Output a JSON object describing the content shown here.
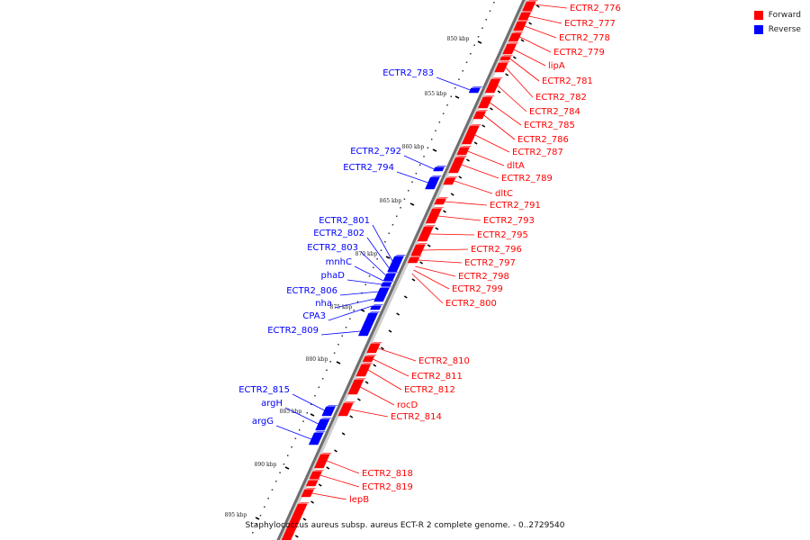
{
  "legend": {
    "forward": "Forward",
    "reverse": "Reverse",
    "forward_color": "#ff0000",
    "reverse_color": "#0000ff"
  },
  "caption": "Staphylococcus aureus subsp. aureus ECT-R 2 complete genome. - 0..2729540",
  "kbp_labels": [
    "850 kbp",
    "855 kbp",
    "860 kbp",
    "865 kbp",
    "870 kbp",
    "875 kbp",
    "880 kbp",
    "885 kbp",
    "890 kbp",
    "895 kbp"
  ],
  "forward_genes": [
    "ECTR2_776",
    "ECTR2_777",
    "ECTR2_778",
    "ECTR2_779",
    "lipA",
    "ECTR2_781",
    "ECTR2_782",
    "ECTR2_784",
    "ECTR2_785",
    "ECTR2_786",
    "ECTR2_787",
    "dltA",
    "ECTR2_789",
    "dltC",
    "ECTR2_791",
    "ECTR2_793",
    "ECTR2_795",
    "ECTR2_796",
    "ECTR2_797",
    "ECTR2_798",
    "ECTR2_799",
    "ECTR2_800",
    "ECTR2_810",
    "ECTR2_811",
    "ECTR2_812",
    "rocD",
    "ECTR2_814",
    "ECTR2_818",
    "ECTR2_819",
    "lepB"
  ],
  "reverse_genes": [
    "ECTR2_783",
    "ECTR2_792",
    "ECTR2_794",
    "ECTR2_801",
    "ECTR2_802",
    "ECTR2_803",
    "mnhC",
    "phaD",
    "ECTR2_806",
    "nha",
    "CPA3",
    "ECTR2_809",
    "ECTR2_815",
    "argH",
    "argG"
  ]
}
